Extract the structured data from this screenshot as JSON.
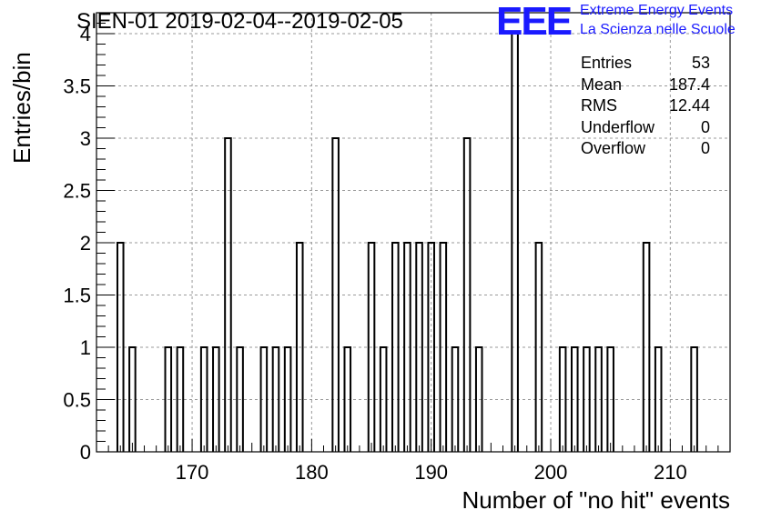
{
  "title": "SIEN-01 2019-02-04--2019-02-05",
  "logo": {
    "mark": "EEE",
    "line1": "Extreme Energy Events",
    "line2": "La Scienza nelle Scuole",
    "color": "#1a1aff"
  },
  "stats": [
    {
      "label": "Entries",
      "value": "53"
    },
    {
      "label": "Mean",
      "value": "187.4"
    },
    {
      "label": "RMS",
      "value": "12.44"
    },
    {
      "label": "Underflow",
      "value": "0"
    },
    {
      "label": "Overflow",
      "value": "0"
    }
  ],
  "chart_data": {
    "type": "bar",
    "title": "SIEN-01 2019-02-04--2019-02-05",
    "xlabel": "Number of \"no hit\" events",
    "ylabel": "Entries/bin",
    "xlim": [
      162,
      215
    ],
    "ylim": [
      0,
      4.2
    ],
    "bin_width": 0.5,
    "grid": true,
    "x_ticks": [
      170,
      180,
      190,
      200,
      210
    ],
    "y_ticks": [
      0,
      0.5,
      1,
      1.5,
      2,
      2.5,
      3,
      3.5,
      4
    ],
    "y_tick_labels": [
      "0",
      "0.5",
      "1",
      "1.5",
      "2",
      "2.5",
      "3",
      "3.5",
      "4"
    ],
    "bins": [
      {
        "x": 164,
        "count": 2
      },
      {
        "x": 165,
        "count": 1
      },
      {
        "x": 168,
        "count": 1
      },
      {
        "x": 169,
        "count": 1
      },
      {
        "x": 171,
        "count": 1
      },
      {
        "x": 172,
        "count": 1
      },
      {
        "x": 173,
        "count": 3
      },
      {
        "x": 174,
        "count": 1
      },
      {
        "x": 176,
        "count": 1
      },
      {
        "x": 177,
        "count": 1
      },
      {
        "x": 178,
        "count": 1
      },
      {
        "x": 179,
        "count": 2
      },
      {
        "x": 182,
        "count": 3
      },
      {
        "x": 183,
        "count": 1
      },
      {
        "x": 185,
        "count": 2
      },
      {
        "x": 186,
        "count": 1
      },
      {
        "x": 187,
        "count": 2
      },
      {
        "x": 188,
        "count": 2
      },
      {
        "x": 189,
        "count": 2
      },
      {
        "x": 190,
        "count": 2
      },
      {
        "x": 191,
        "count": 2
      },
      {
        "x": 192,
        "count": 1
      },
      {
        "x": 193,
        "count": 3
      },
      {
        "x": 194,
        "count": 1
      },
      {
        "x": 197,
        "count": 4
      },
      {
        "x": 199,
        "count": 2
      },
      {
        "x": 201,
        "count": 1
      },
      {
        "x": 202,
        "count": 1
      },
      {
        "x": 203,
        "count": 1
      },
      {
        "x": 204,
        "count": 1
      },
      {
        "x": 205,
        "count": 1
      },
      {
        "x": 208,
        "count": 2
      },
      {
        "x": 209,
        "count": 1
      },
      {
        "x": 212,
        "count": 1
      }
    ]
  }
}
